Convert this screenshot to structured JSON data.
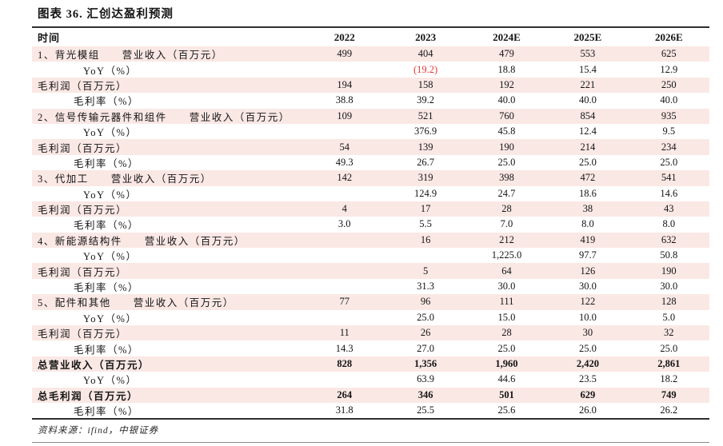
{
  "title": "图表 36. 汇创达盈利预测",
  "source_note": "资料来源：ifind，中银证券",
  "colors": {
    "stripe_pink": "#fae8e5",
    "negative_red": "#e53935",
    "rule_dark": "#2f2f2f",
    "rule_light": "#8c8c8c",
    "text": "#141414"
  },
  "table": {
    "header": [
      "时间",
      "2022",
      "2023",
      "2024E",
      "2025E",
      "2026E"
    ],
    "rows": [
      {
        "label": "1、背光模组　　营业收入（百万元）",
        "indent": 0,
        "bold": false,
        "values": [
          "499",
          "404",
          "479",
          "553",
          "625"
        ],
        "red": []
      },
      {
        "label": "YoY（%）",
        "indent": 2,
        "bold": false,
        "values": [
          "",
          "(19.2)",
          "18.8",
          "15.4",
          "12.9"
        ],
        "red": [
          1
        ]
      },
      {
        "label": "毛利润（百万元）",
        "indent": 0,
        "bold": false,
        "values": [
          "194",
          "158",
          "192",
          "221",
          "250"
        ],
        "red": []
      },
      {
        "label": "毛利率（%）",
        "indent": 1,
        "bold": false,
        "values": [
          "38.8",
          "39.2",
          "40.0",
          "40.0",
          "40.0"
        ],
        "red": []
      },
      {
        "label": "2、信号传输元器件和组件　　营业收入（百万元）",
        "indent": 0,
        "bold": false,
        "values": [
          "109",
          "521",
          "760",
          "854",
          "935"
        ],
        "red": []
      },
      {
        "label": "YoY（%）",
        "indent": 2,
        "bold": false,
        "values": [
          "",
          "376.9",
          "45.8",
          "12.4",
          "9.5"
        ],
        "red": []
      },
      {
        "label": "毛利润（百万元）",
        "indent": 0,
        "bold": false,
        "values": [
          "54",
          "139",
          "190",
          "214",
          "234"
        ],
        "red": []
      },
      {
        "label": "毛利率（%）",
        "indent": 1,
        "bold": false,
        "values": [
          "49.3",
          "26.7",
          "25.0",
          "25.0",
          "25.0"
        ],
        "red": []
      },
      {
        "label": "3、代加工　　营业收入（百万元）",
        "indent": 0,
        "bold": false,
        "values": [
          "142",
          "319",
          "398",
          "472",
          "541"
        ],
        "red": []
      },
      {
        "label": "YoY（%）",
        "indent": 2,
        "bold": false,
        "values": [
          "",
          "124.9",
          "24.7",
          "18.6",
          "14.6"
        ],
        "red": []
      },
      {
        "label": "毛利润（百万元）",
        "indent": 0,
        "bold": false,
        "values": [
          "4",
          "17",
          "28",
          "38",
          "43"
        ],
        "red": []
      },
      {
        "label": "毛利率（%）",
        "indent": 1,
        "bold": false,
        "values": [
          "3.0",
          "5.5",
          "7.0",
          "8.0",
          "8.0"
        ],
        "red": []
      },
      {
        "label": "4、新能源结构件　　营业收入（百万元）",
        "indent": 0,
        "bold": false,
        "values": [
          "",
          "16",
          "212",
          "419",
          "632"
        ],
        "red": []
      },
      {
        "label": "YoY（%）",
        "indent": 2,
        "bold": false,
        "values": [
          "",
          "",
          "1,225.0",
          "97.7",
          "50.8"
        ],
        "red": []
      },
      {
        "label": "毛利润（百万元）",
        "indent": 0,
        "bold": false,
        "values": [
          "",
          "5",
          "64",
          "126",
          "190"
        ],
        "red": []
      },
      {
        "label": "毛利率（%）",
        "indent": 1,
        "bold": false,
        "values": [
          "",
          "31.3",
          "30.0",
          "30.0",
          "30.0"
        ],
        "red": []
      },
      {
        "label": "5、配件和其他　　营业收入（百万元）",
        "indent": 0,
        "bold": false,
        "values": [
          "77",
          "96",
          "111",
          "122",
          "128"
        ],
        "red": []
      },
      {
        "label": "YoY（%）",
        "indent": 2,
        "bold": false,
        "values": [
          "",
          "25.0",
          "15.0",
          "10.0",
          "5.0"
        ],
        "red": []
      },
      {
        "label": "毛利润（百万元）",
        "indent": 0,
        "bold": false,
        "values": [
          "11",
          "26",
          "28",
          "30",
          "32"
        ],
        "red": []
      },
      {
        "label": "毛利率（%）",
        "indent": 1,
        "bold": false,
        "values": [
          "14.3",
          "27.0",
          "25.0",
          "25.0",
          "25.0"
        ],
        "red": []
      },
      {
        "label": "总营业收入（百万元）",
        "indent": 0,
        "bold": true,
        "values": [
          "828",
          "1,356",
          "1,960",
          "2,420",
          "2,861"
        ],
        "red": []
      },
      {
        "label": "YoY（%）",
        "indent": 2,
        "bold": false,
        "values": [
          "",
          "63.9",
          "44.6",
          "23.5",
          "18.2"
        ],
        "red": []
      },
      {
        "label": "总毛利润（百万元）",
        "indent": 0,
        "bold": true,
        "values": [
          "264",
          "346",
          "501",
          "629",
          "749"
        ],
        "red": []
      },
      {
        "label": "毛利率（%）",
        "indent": 1,
        "bold": false,
        "values": [
          "31.8",
          "25.5",
          "25.6",
          "26.0",
          "26.2"
        ],
        "red": []
      }
    ]
  }
}
